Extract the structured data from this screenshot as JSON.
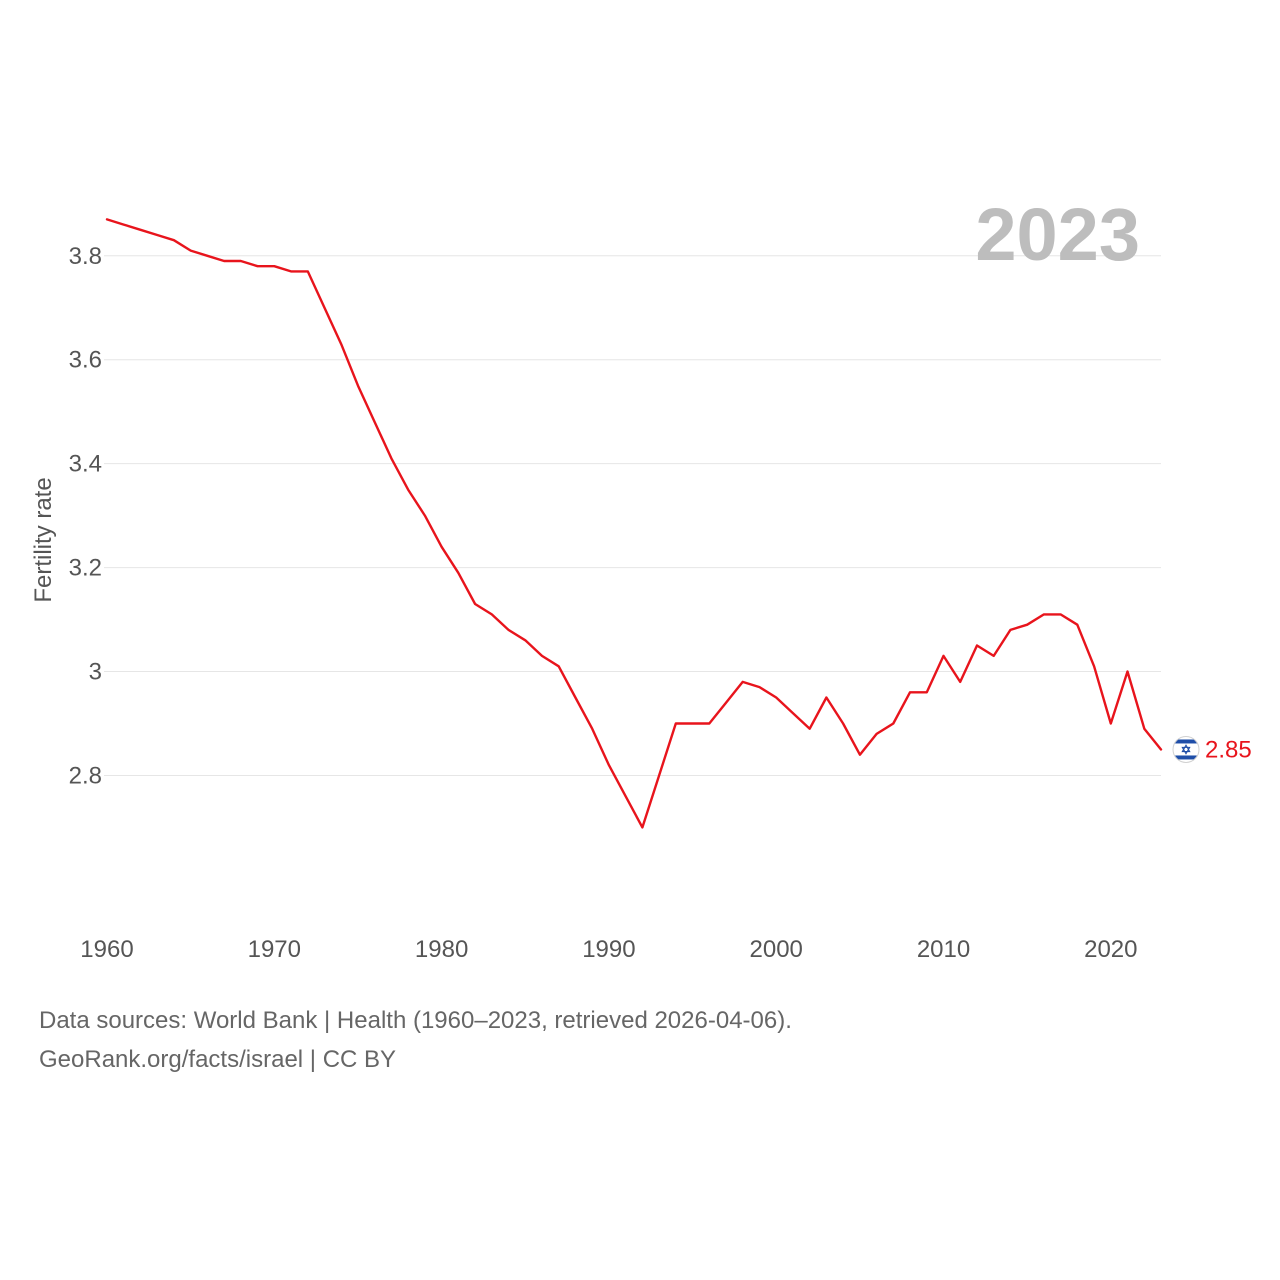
{
  "chart_data": {
    "type": "line",
    "title": "",
    "year_label": "2023",
    "xlabel": "",
    "ylabel": "Fertility rate",
    "xlim": [
      1960,
      2023
    ],
    "ylim": [
      2.62,
      3.89
    ],
    "x_ticks": [
      1960,
      1970,
      1980,
      1990,
      2000,
      2010,
      2020
    ],
    "y_ticks": [
      2.8,
      3.0,
      3.2,
      3.4,
      3.6,
      3.8
    ],
    "y_tick_labels": [
      "2.8",
      "3",
      "3.2",
      "3.4",
      "3.6",
      "3.8"
    ],
    "grid": true,
    "color": "#e8141c",
    "series": [
      {
        "name": "Israel",
        "x": [
          1960,
          1961,
          1962,
          1963,
          1964,
          1965,
          1966,
          1967,
          1968,
          1969,
          1970,
          1971,
          1972,
          1973,
          1974,
          1975,
          1976,
          1977,
          1978,
          1979,
          1980,
          1981,
          1982,
          1983,
          1984,
          1985,
          1986,
          1987,
          1988,
          1989,
          1990,
          1991,
          1992,
          1993,
          1994,
          1995,
          1996,
          1997,
          1998,
          1999,
          2000,
          2001,
          2002,
          2003,
          2004,
          2005,
          2006,
          2007,
          2008,
          2009,
          2010,
          2011,
          2012,
          2013,
          2014,
          2015,
          2016,
          2017,
          2018,
          2019,
          2020,
          2021,
          2022,
          2023
        ],
        "values": [
          3.87,
          3.86,
          3.85,
          3.84,
          3.83,
          3.81,
          3.8,
          3.79,
          3.79,
          3.78,
          3.78,
          3.77,
          3.77,
          3.7,
          3.63,
          3.55,
          3.48,
          3.41,
          3.35,
          3.3,
          3.24,
          3.19,
          3.13,
          3.11,
          3.08,
          3.06,
          3.03,
          3.01,
          2.95,
          2.89,
          2.82,
          2.76,
          2.7,
          2.8,
          2.9,
          2.9,
          2.9,
          2.94,
          2.98,
          2.97,
          2.95,
          2.92,
          2.89,
          2.95,
          2.9,
          2.84,
          2.88,
          2.9,
          2.96,
          2.96,
          3.03,
          2.98,
          3.05,
          3.03,
          3.08,
          3.09,
          3.11,
          3.11,
          3.09,
          3.01,
          2.9,
          3.0,
          2.89,
          2.85
        ]
      }
    ],
    "end_value_label": "2.85",
    "end_marker_icon": "israel-flag-icon"
  },
  "footer": {
    "sources": "Data sources: World Bank | Health (1960–2023, retrieved 2026-04-06).",
    "attribution": "GeoRank.org/facts/israel | CC BY"
  }
}
